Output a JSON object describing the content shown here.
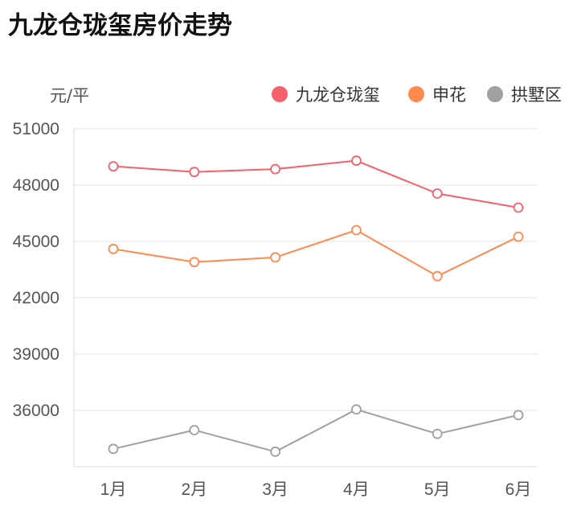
{
  "title": "九龙仓珑玺房价走势",
  "chart_data": {
    "type": "line",
    "title": "九龙仓珑玺房价走势",
    "ylabel": "元/平",
    "xlabel": "",
    "categories": [
      "1月",
      "2月",
      "3月",
      "4月",
      "5月",
      "6月"
    ],
    "ylim": [
      33000,
      51000
    ],
    "yticks": [
      36000,
      39000,
      42000,
      45000,
      48000,
      51000
    ],
    "grid": true,
    "legend_position": "top-right",
    "series": [
      {
        "name": "九龙仓珑玺",
        "color": "#f4606c",
        "values": [
          49000,
          48700,
          48850,
          49300,
          47550,
          46800
        ]
      },
      {
        "name": "申花",
        "color": "#ff8a50",
        "values": [
          44600,
          43900,
          44150,
          45600,
          43150,
          45250
        ]
      },
      {
        "name": "拱墅区",
        "color": "#a0a0a0",
        "values": [
          33950,
          34950,
          33800,
          36050,
          34750,
          35750
        ]
      }
    ]
  }
}
